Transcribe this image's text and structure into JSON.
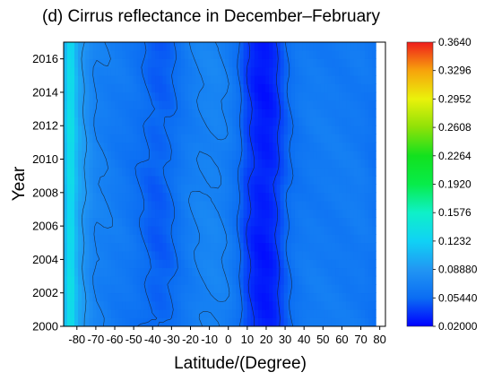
{
  "chart_data": {
    "type": "heatmap",
    "title": "(d) Cirrus reflectance in December–February",
    "xlabel": "Latitude/(Degree)",
    "ylabel": "Year",
    "x_ticks": [
      "-80",
      "-70",
      "-60",
      "-50",
      "-40",
      "-30",
      "-20",
      "-10",
      "0",
      "10",
      "20",
      "30",
      "40",
      "50",
      "60",
      "70",
      "80"
    ],
    "y_ticks": [
      "2000",
      "2002",
      "2004",
      "2006",
      "2008",
      "2010",
      "2012",
      "2014",
      "2016"
    ],
    "xlim": [
      -87,
      83
    ],
    "ylim": [
      2000,
      2017
    ],
    "colorbar": {
      "ticks": [
        "0.3640",
        "0.3296",
        "0.2952",
        "0.2608",
        "0.2264",
        "0.1920",
        "0.1576",
        "0.1232",
        "0.08880",
        "0.05440",
        "0.02000"
      ],
      "range": [
        0.02,
        0.364
      ],
      "colors": [
        "#0000ff",
        "#0b6df3",
        "#2196f3",
        "#10d2f5",
        "#0ff0c8",
        "#07ec4a",
        "#12e11e",
        "#8ee108",
        "#eaf20b",
        "#f7a30c",
        "#ef1c1c"
      ]
    },
    "latitudes": [
      -87,
      -83,
      -80,
      -75,
      -70,
      -65,
      -60,
      -55,
      -50,
      -45,
      -40,
      -35,
      -30,
      -25,
      -20,
      -15,
      -10,
      -5,
      0,
      5,
      10,
      15,
      20,
      25,
      30,
      35,
      40,
      45,
      50,
      55,
      60,
      65,
      70,
      75,
      78
    ],
    "mean_profile": [
      0.1,
      0.145,
      0.102,
      0.085,
      0.072,
      0.07,
      0.066,
      0.064,
      0.06,
      0.055,
      0.05,
      0.05,
      0.054,
      0.062,
      0.068,
      0.072,
      0.074,
      0.073,
      0.068,
      0.058,
      0.04,
      0.03,
      0.028,
      0.034,
      0.05,
      0.06,
      0.064,
      0.066,
      0.066,
      0.066,
      0.066,
      0.066,
      0.066,
      0.062,
      0.06
    ],
    "data_right_edge_latitude": 78,
    "contour_levels": [
      0.0372,
      0.0544,
      0.0716,
      0.0888
    ]
  }
}
